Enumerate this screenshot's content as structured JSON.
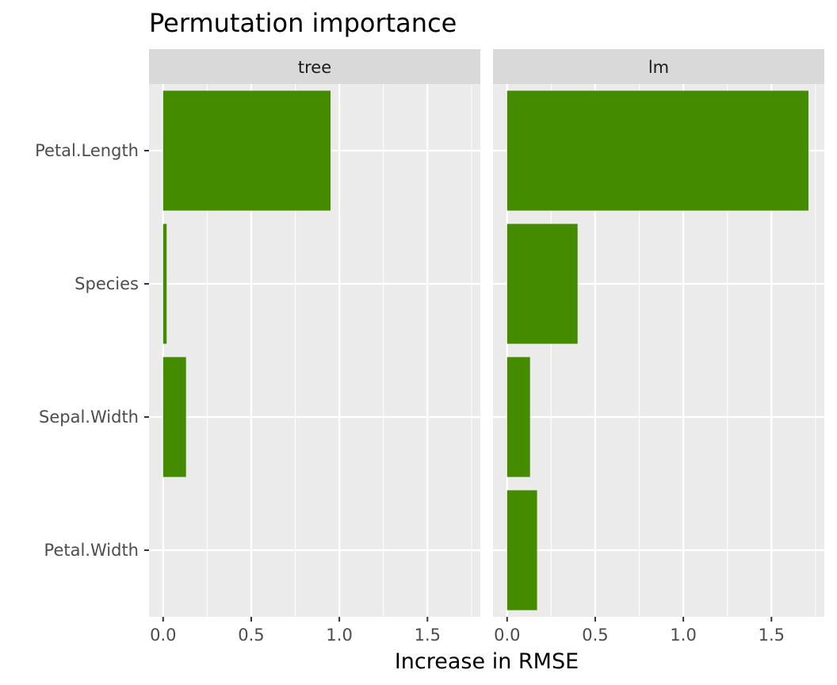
{
  "chart_data": {
    "type": "bar",
    "orientation": "horizontal",
    "title": "Permutation importance",
    "xlabel": "Increase in RMSE",
    "ylabel": "",
    "categories": [
      "Petal.Length",
      "Species",
      "Sepal.Width",
      "Petal.Width"
    ],
    "xlim": [
      -0.08,
      1.8
    ],
    "x_ticks": [
      0.0,
      0.5,
      1.0,
      1.5
    ],
    "x_tick_labels": [
      "0.0",
      "0.5",
      "1.0",
      "1.5"
    ],
    "grid": true,
    "legend": "none",
    "bar_color": "#448b00",
    "panel_bg": "#ebebeb",
    "strip_bg": "#d9d9d9",
    "facets": [
      {
        "name": "tree",
        "values": [
          0.95,
          0.02,
          0.13,
          0.0
        ]
      },
      {
        "name": "lm",
        "values": [
          1.71,
          0.4,
          0.13,
          0.17
        ]
      }
    ]
  }
}
